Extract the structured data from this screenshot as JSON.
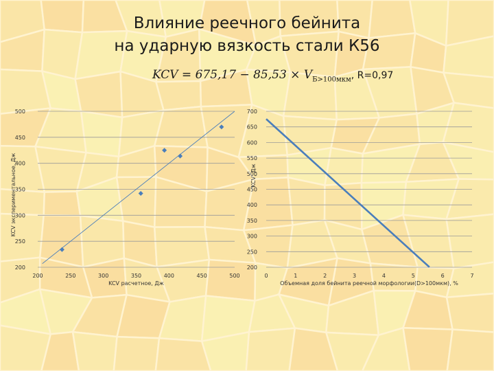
{
  "title_line1": "Влияние реечного бейнита",
  "title_line2": "на ударную вязкость стали К56",
  "formula": {
    "lhs": "KCV = 675,17 − 85,53 × V",
    "subscript": "Б>100мкм",
    "r_text": ", R=0,97"
  },
  "colors": {
    "marker": "#4a7ebb",
    "line": "#4a7ebb",
    "grid": "#9a9a9a",
    "axis_text": "#333333"
  },
  "chart_data": [
    {
      "type": "scatter",
      "xlabel": "KCV расчетное, Дж",
      "ylabel": "KCV экспериментальное, Дж",
      "xlim": [
        200,
        500
      ],
      "ylim": [
        200,
        500
      ],
      "x_ticks": [
        200,
        250,
        300,
        350,
        400,
        450,
        500
      ],
      "y_ticks": [
        200,
        250,
        300,
        350,
        400,
        450,
        500
      ],
      "grid": true,
      "points": [
        {
          "x": 237,
          "y": 234
        },
        {
          "x": 357,
          "y": 342
        },
        {
          "x": 393,
          "y": 425
        },
        {
          "x": 417,
          "y": 414
        },
        {
          "x": 480,
          "y": 470
        }
      ],
      "reference_line": {
        "from": [
          207,
          207
        ],
        "to": [
          500,
          500
        ]
      }
    },
    {
      "type": "line",
      "xlabel": "Объемная доля бейнита реечной морфологии(D>100мкм), %",
      "ylabel": "KCV, Дж",
      "xlim": [
        0,
        7
      ],
      "ylim": [
        200,
        700
      ],
      "x_ticks": [
        0,
        1,
        2,
        3,
        4,
        5,
        6,
        7
      ],
      "y_ticks": [
        200,
        250,
        300,
        350,
        400,
        450,
        500,
        550,
        600,
        650,
        700
      ],
      "grid": true,
      "series": [
        {
          "x": [
            0,
            5.55
          ],
          "y": [
            675.17,
            200.5
          ]
        }
      ]
    }
  ]
}
